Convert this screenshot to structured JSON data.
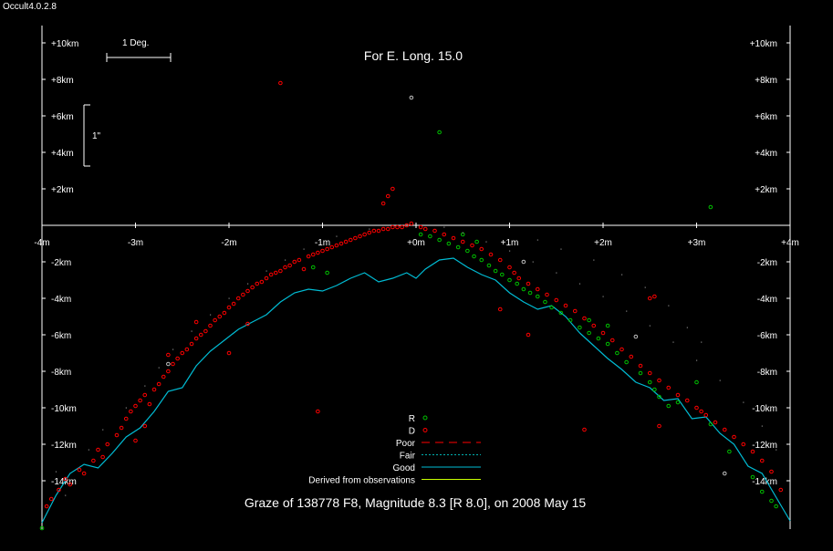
{
  "app": {
    "version_label": "Occult4.0.2.8"
  },
  "chart_data": {
    "type": "scatter",
    "title": "Graze of  138778 F8,  Magnitude 8.3 [R 8.0],  on 2008 May 15",
    "subtitle": "For E. Long. 15.0",
    "xlim": [
      -4,
      4
    ],
    "ylim": [
      -16.3,
      11.2
    ],
    "x_ticks": [
      {
        "value": -4,
        "label": "-4m"
      },
      {
        "value": -3,
        "label": "-3m"
      },
      {
        "value": -2,
        "label": "-2m"
      },
      {
        "value": -1,
        "label": "-1m"
      },
      {
        "value": 0,
        "label": "+0m"
      },
      {
        "value": 1,
        "label": "+1m"
      },
      {
        "value": 2,
        "label": "+2m"
      },
      {
        "value": 3,
        "label": "+3m"
      },
      {
        "value": 4,
        "label": "+4m"
      }
    ],
    "y_ticks": [
      {
        "value": 10,
        "label": "+10km"
      },
      {
        "value": 8,
        "label": "+8km"
      },
      {
        "value": 6,
        "label": "+6km"
      },
      {
        "value": 4,
        "label": "+4km"
      },
      {
        "value": 2,
        "label": "+2km"
      },
      {
        "value": -2,
        "label": "-2km"
      },
      {
        "value": -4,
        "label": "-4km"
      },
      {
        "value": -6,
        "label": "-6km"
      },
      {
        "value": -8,
        "label": "-8km"
      },
      {
        "value": -10,
        "label": "-10km"
      },
      {
        "value": -12,
        "label": "-12km"
      },
      {
        "value": -14,
        "label": "-14km"
      }
    ],
    "scale_bars": {
      "degree_label": "1 Deg.",
      "arcsec_label": "1\""
    },
    "legend": {
      "position": "bottom-center",
      "entries": [
        {
          "label": "R",
          "color": "#00c000",
          "style": "circle"
        },
        {
          "label": "D",
          "color": "#ff0000",
          "style": "circle"
        },
        {
          "label": "Poor",
          "color": "#ff0000",
          "style": "dash"
        },
        {
          "label": "Fair",
          "color": "#00b0b0",
          "style": "dot"
        },
        {
          "label": "Good",
          "color": "#00bcd4",
          "style": "solid"
        },
        {
          "label": "Derived from observations",
          "color": "#c8ff00",
          "style": "solid"
        }
      ]
    },
    "limb_profile": {
      "color": "#00bcd4",
      "x": [
        -4.0,
        -3.85,
        -3.7,
        -3.55,
        -3.4,
        -3.25,
        -3.1,
        -2.95,
        -2.8,
        -2.65,
        -2.5,
        -2.35,
        -2.2,
        -2.05,
        -1.9,
        -1.75,
        -1.6,
        -1.45,
        -1.3,
        -1.15,
        -1.0,
        -0.85,
        -0.7,
        -0.55,
        -0.4,
        -0.25,
        -0.1,
        0.0,
        0.1,
        0.25,
        0.4,
        0.55,
        0.7,
        0.85,
        1.0,
        1.15,
        1.3,
        1.45,
        1.6,
        1.75,
        1.9,
        2.05,
        2.2,
        2.35,
        2.5,
        2.65,
        2.8,
        2.95,
        3.1,
        3.25,
        3.4,
        3.55,
        3.7,
        3.85,
        4.0
      ],
      "y": [
        -16.3,
        -14.8,
        -13.6,
        -13.1,
        -13.3,
        -12.5,
        -11.6,
        -11.1,
        -10.2,
        -9.1,
        -8.9,
        -7.7,
        -6.9,
        -6.3,
        -5.7,
        -5.3,
        -4.9,
        -4.2,
        -3.7,
        -3.5,
        -3.6,
        -3.3,
        -2.9,
        -2.6,
        -3.1,
        -2.9,
        -2.6,
        -2.9,
        -2.4,
        -1.9,
        -1.8,
        -2.3,
        -2.7,
        -3.0,
        -3.7,
        -4.2,
        -4.6,
        -4.4,
        -5.0,
        -5.9,
        -6.6,
        -7.3,
        -7.9,
        -8.6,
        -8.9,
        -9.6,
        -9.5,
        -10.6,
        -10.5,
        -11.4,
        -12.0,
        -13.2,
        -13.6,
        -14.9,
        -16.2
      ]
    },
    "series": [
      {
        "name": "D",
        "color": "#ff0000",
        "points": [
          [
            -3.95,
            -15.4
          ],
          [
            -3.9,
            -15.0
          ],
          [
            -3.82,
            -14.5
          ],
          [
            -3.75,
            -13.9
          ],
          [
            -3.7,
            -14.2
          ],
          [
            -3.6,
            -13.4
          ],
          [
            -3.55,
            -13.6
          ],
          [
            -3.45,
            -12.9
          ],
          [
            -3.4,
            -12.3
          ],
          [
            -3.35,
            -12.7
          ],
          [
            -3.3,
            -12.0
          ],
          [
            -3.2,
            -11.5
          ],
          [
            -3.15,
            -11.1
          ],
          [
            -3.1,
            -10.6
          ],
          [
            -3.05,
            -10.2
          ],
          [
            -3.0,
            -9.9
          ],
          [
            -2.95,
            -9.6
          ],
          [
            -2.9,
            -9.3
          ],
          [
            -2.85,
            -9.8
          ],
          [
            -2.8,
            -9.0
          ],
          [
            -2.75,
            -8.7
          ],
          [
            -2.7,
            -8.3
          ],
          [
            -2.65,
            -8.0
          ],
          [
            -2.6,
            -7.6
          ],
          [
            -2.55,
            -7.3
          ],
          [
            -2.5,
            -7.0
          ],
          [
            -2.45,
            -6.8
          ],
          [
            -2.4,
            -6.5
          ],
          [
            -2.35,
            -6.2
          ],
          [
            -2.3,
            -6.0
          ],
          [
            -2.25,
            -5.8
          ],
          [
            -2.2,
            -5.5
          ],
          [
            -2.15,
            -5.2
          ],
          [
            -2.1,
            -5.0
          ],
          [
            -2.05,
            -4.8
          ],
          [
            -2.0,
            -4.5
          ],
          [
            -1.95,
            -4.3
          ],
          [
            -1.9,
            -4.0
          ],
          [
            -1.85,
            -3.8
          ],
          [
            -1.8,
            -3.6
          ],
          [
            -1.75,
            -3.4
          ],
          [
            -1.7,
            -3.2
          ],
          [
            -1.65,
            -3.1
          ],
          [
            -1.6,
            -2.9
          ],
          [
            -1.55,
            -2.7
          ],
          [
            -1.5,
            -2.6
          ],
          [
            -1.45,
            -2.5
          ],
          [
            -1.4,
            -2.3
          ],
          [
            -1.35,
            -2.2
          ],
          [
            -1.3,
            -2.0
          ],
          [
            -1.25,
            -1.9
          ],
          [
            -1.2,
            -2.4
          ],
          [
            -1.15,
            -1.7
          ],
          [
            -1.1,
            -1.6
          ],
          [
            -1.05,
            -1.5
          ],
          [
            -1.0,
            -1.4
          ],
          [
            -0.95,
            -1.3
          ],
          [
            -0.9,
            -1.2
          ],
          [
            -0.85,
            -1.1
          ],
          [
            -0.8,
            -1.0
          ],
          [
            -0.75,
            -0.9
          ],
          [
            -0.7,
            -0.8
          ],
          [
            -0.65,
            -0.7
          ],
          [
            -0.6,
            -0.6
          ],
          [
            -0.55,
            -0.5
          ],
          [
            -0.5,
            -0.4
          ],
          [
            -0.45,
            -0.3
          ],
          [
            -0.4,
            -0.3
          ],
          [
            -0.35,
            -0.2
          ],
          [
            -0.3,
            -0.2
          ],
          [
            -0.25,
            -0.1
          ],
          [
            -0.2,
            -0.1
          ],
          [
            -0.15,
            -0.1
          ],
          [
            -0.1,
            0.0
          ],
          [
            -0.05,
            0.1
          ],
          [
            0.05,
            -0.1
          ],
          [
            0.1,
            -0.2
          ],
          [
            0.2,
            -0.3
          ],
          [
            0.3,
            -0.5
          ],
          [
            0.4,
            -0.7
          ],
          [
            0.5,
            -0.9
          ],
          [
            0.6,
            -1.1
          ],
          [
            0.7,
            -1.3
          ],
          [
            0.8,
            -1.6
          ],
          [
            0.9,
            -1.9
          ],
          [
            1.0,
            -2.3
          ],
          [
            1.05,
            -2.6
          ],
          [
            1.1,
            -2.9
          ],
          [
            1.2,
            -3.2
          ],
          [
            1.3,
            -3.5
          ],
          [
            1.4,
            -3.8
          ],
          [
            1.5,
            -4.1
          ],
          [
            1.6,
            -4.4
          ],
          [
            1.7,
            -4.7
          ],
          [
            1.8,
            -5.1
          ],
          [
            1.9,
            -5.5
          ],
          [
            2.0,
            -5.9
          ],
          [
            2.1,
            -6.3
          ],
          [
            2.2,
            -6.8
          ],
          [
            2.3,
            -7.2
          ],
          [
            2.4,
            -7.7
          ],
          [
            2.5,
            -8.1
          ],
          [
            2.6,
            -8.5
          ],
          [
            2.7,
            -8.9
          ],
          [
            2.8,
            -9.3
          ],
          [
            2.9,
            -9.6
          ],
          [
            3.0,
            -10.0
          ],
          [
            3.1,
            -10.4
          ],
          [
            3.2,
            -10.8
          ],
          [
            3.3,
            -11.2
          ],
          [
            3.4,
            -11.6
          ],
          [
            3.5,
            -12.0
          ],
          [
            3.6,
            -12.4
          ],
          [
            3.7,
            -12.9
          ],
          [
            3.8,
            -13.5
          ],
          [
            3.9,
            -14.5
          ],
          [
            -1.45,
            7.8
          ],
          [
            -0.25,
            2.0
          ],
          [
            -0.3,
            1.6
          ],
          [
            -0.35,
            1.2
          ],
          [
            -1.05,
            -10.2
          ],
          [
            0.9,
            -4.6
          ],
          [
            1.8,
            -11.2
          ],
          [
            2.55,
            -3.9
          ],
          [
            2.5,
            -4.0
          ],
          [
            2.6,
            -11.0
          ],
          [
            3.05,
            -10.2
          ],
          [
            1.2,
            -6.0
          ],
          [
            -2.0,
            -7.0
          ],
          [
            -1.8,
            -5.4
          ],
          [
            -2.35,
            -5.3
          ],
          [
            -2.65,
            -7.1
          ],
          [
            -2.9,
            -11.0
          ],
          [
            -3.0,
            -11.8
          ]
        ]
      },
      {
        "name": "R",
        "color": "#00c000",
        "points": [
          [
            0.05,
            -0.5
          ],
          [
            0.15,
            -0.6
          ],
          [
            0.25,
            -0.8
          ],
          [
            0.35,
            -1.0
          ],
          [
            0.45,
            -1.2
          ],
          [
            0.55,
            -1.4
          ],
          [
            0.62,
            -1.7
          ],
          [
            0.7,
            -1.9
          ],
          [
            0.78,
            -2.2
          ],
          [
            0.85,
            -2.5
          ],
          [
            0.92,
            -2.7
          ],
          [
            1.0,
            -3.0
          ],
          [
            1.08,
            -3.2
          ],
          [
            1.15,
            -3.5
          ],
          [
            1.22,
            -3.7
          ],
          [
            1.3,
            -3.9
          ],
          [
            1.38,
            -4.2
          ],
          [
            1.45,
            -4.5
          ],
          [
            1.55,
            -4.8
          ],
          [
            1.65,
            -5.2
          ],
          [
            1.75,
            -5.6
          ],
          [
            1.85,
            -5.9
          ],
          [
            1.95,
            -6.2
          ],
          [
            2.05,
            -6.5
          ],
          [
            2.15,
            -7.0
          ],
          [
            2.25,
            -7.5
          ],
          [
            2.4,
            -8.1
          ],
          [
            2.5,
            -8.6
          ],
          [
            2.55,
            -9.0
          ],
          [
            2.6,
            -9.4
          ],
          [
            2.7,
            -9.9
          ],
          [
            2.8,
            -9.7
          ],
          [
            3.0,
            -8.6
          ],
          [
            3.15,
            -10.9
          ],
          [
            3.35,
            -12.4
          ],
          [
            3.6,
            -13.8
          ],
          [
            3.7,
            -14.6
          ],
          [
            3.8,
            -15.1
          ],
          [
            3.85,
            -15.4
          ],
          [
            0.25,
            5.1
          ],
          [
            3.15,
            1.0
          ],
          [
            -1.1,
            -2.3
          ],
          [
            -0.95,
            -2.6
          ],
          [
            0.5,
            -0.5
          ],
          [
            0.65,
            -0.9
          ],
          [
            1.85,
            -5.2
          ],
          [
            2.05,
            -5.5
          ],
          [
            -4.0,
            -16.6
          ]
        ]
      },
      {
        "name": "",
        "color": "#c0c0c0",
        "points": [
          [
            -0.05,
            7.0
          ],
          [
            1.15,
            -2.0
          ],
          [
            2.35,
            -6.1
          ],
          [
            3.3,
            -13.6
          ],
          [
            -2.65,
            -7.6
          ]
        ]
      },
      {
        "name": "",
        "color": "#808080",
        "style": "dot",
        "points": [
          [
            -3.5,
            -12.3
          ],
          [
            -3.35,
            -11.2
          ],
          [
            -3.1,
            -10.0
          ],
          [
            -2.9,
            -8.8
          ],
          [
            -2.75,
            -7.8
          ],
          [
            -2.6,
            -6.8
          ],
          [
            -2.4,
            -5.8
          ],
          [
            -2.2,
            -4.9
          ],
          [
            -2.0,
            -4.0
          ],
          [
            -1.8,
            -3.2
          ],
          [
            -1.6,
            -2.5
          ],
          [
            -1.4,
            -1.9
          ],
          [
            -1.2,
            -1.3
          ],
          [
            -0.85,
            -0.6
          ],
          [
            -0.5,
            -0.2
          ],
          [
            0.3,
            -0.1
          ],
          [
            0.5,
            -0.4
          ],
          [
            0.75,
            -0.9
          ],
          [
            1.0,
            -1.4
          ],
          [
            1.25,
            -2.0
          ],
          [
            1.5,
            -2.6
          ],
          [
            1.75,
            -3.2
          ],
          [
            2.0,
            -3.9
          ],
          [
            2.25,
            -4.7
          ],
          [
            2.5,
            -5.5
          ],
          [
            2.75,
            -6.4
          ],
          [
            3.0,
            -7.4
          ],
          [
            3.25,
            -8.5
          ],
          [
            3.5,
            -9.7
          ],
          [
            3.7,
            -11.0
          ],
          [
            3.85,
            -12.3
          ],
          [
            -3.85,
            -13.5
          ],
          [
            -3.75,
            -14.8
          ],
          [
            1.3,
            -0.8
          ],
          [
            1.55,
            -1.3
          ],
          [
            1.9,
            -1.9
          ],
          [
            2.2,
            -2.7
          ],
          [
            2.45,
            -3.4
          ],
          [
            2.7,
            -4.4
          ],
          [
            2.9,
            -5.6
          ],
          [
            3.05,
            -6.4
          ]
        ]
      }
    ]
  }
}
